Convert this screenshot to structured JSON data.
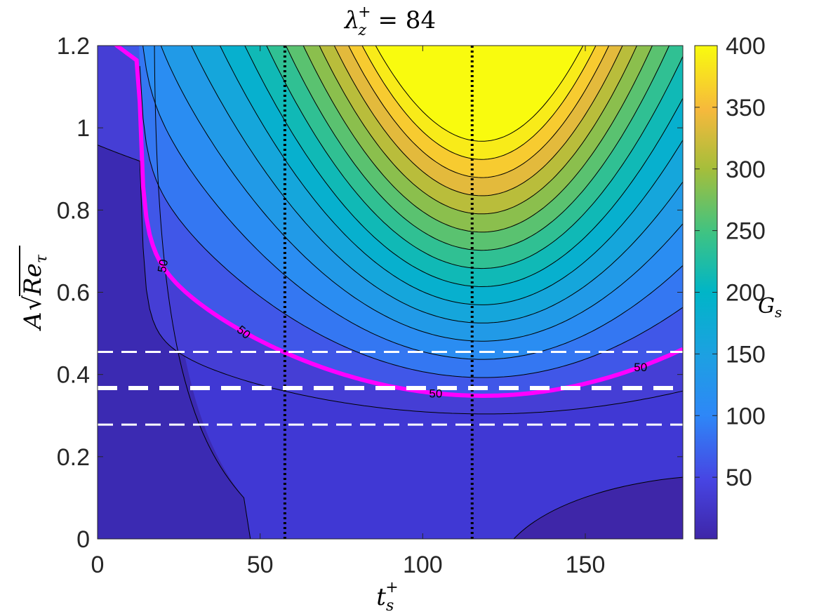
{
  "chart_data": {
    "type": "contour",
    "title": "λ",
    "title_sub": "z",
    "title_sup": "+",
    "title_rhs": "= 84",
    "xlabel": "t",
    "xlabel_sub": "s",
    "xlabel_sup": "+",
    "ylabel": "A",
    "ylabel_root": "Re",
    "ylabel_sub": "τ",
    "colorbar_label": "G",
    "colorbar_label_sub": "s",
    "colormap": "parula",
    "xlim": [
      0,
      180
    ],
    "ylim": [
      0,
      1.2
    ],
    "clim": [
      0,
      400
    ],
    "x_ticks": [
      0,
      50,
      100,
      150
    ],
    "y_ticks": [
      0,
      0.2,
      0.4,
      0.6,
      0.8,
      1,
      1.2
    ],
    "y_tick_labels": [
      "0",
      "0.2",
      "0.4",
      "0.6",
      "0.8",
      "1",
      "1.2"
    ],
    "colorbar_ticks": [
      50,
      100,
      150,
      200,
      250,
      300,
      350,
      400
    ],
    "contour_levels": [
      25,
      50,
      75,
      100,
      125,
      150,
      175,
      200,
      225,
      250,
      275,
      300,
      325,
      350,
      375,
      400
    ],
    "highlight_contour": {
      "level": 50,
      "color": "#ff00ff",
      "labels": [
        "50",
        "50",
        "50",
        "50"
      ]
    },
    "vertical_dotted_lines_x": [
      57.6,
      115.2
    ],
    "horizontal_dashed_lines_y": [
      0.455,
      0.367,
      0.278
    ],
    "colors": {
      "highlight": "#ff00ff",
      "dashed": "#ffffff",
      "dotted": "#000000"
    }
  }
}
